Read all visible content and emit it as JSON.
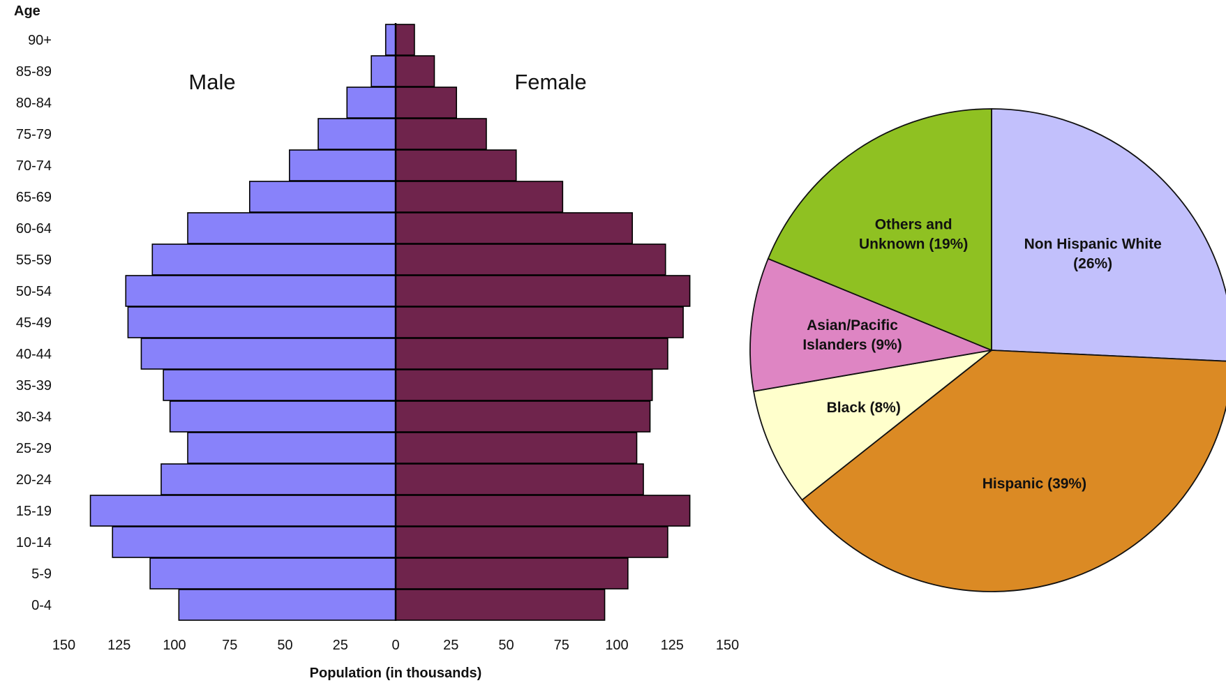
{
  "chart_data": [
    {
      "type": "bar",
      "orientation": "horizontal",
      "subtype": "population-pyramid",
      "title": "",
      "age_axis_label": "Age",
      "xlabel": "Population (in thousands)",
      "side_labels": {
        "left": "Male",
        "right": "Female"
      },
      "categories": [
        "90+",
        "85-89",
        "80-84",
        "75-79",
        "70-74",
        "65-69",
        "60-64",
        "55-59",
        "50-54",
        "45-49",
        "40-44",
        "35-39",
        "30-34",
        "25-29",
        "20-24",
        "15-19",
        "10-14",
        "5-9",
        "0-4"
      ],
      "series": [
        {
          "name": "Male",
          "color": "#8882FA",
          "values": [
            4.5,
            11,
            22,
            35,
            48,
            66,
            94,
            110,
            122,
            121,
            115,
            105,
            102,
            94,
            106,
            138,
            128,
            111,
            98
          ]
        },
        {
          "name": "Female",
          "color": "#6F244C",
          "values": [
            8.5,
            17.5,
            27.5,
            41,
            54.5,
            75.5,
            107,
            122,
            133,
            130,
            123,
            116,
            115,
            109,
            112,
            133,
            123,
            105,
            94.5
          ]
        }
      ],
      "x_ticks": [
        "150",
        "125",
        "100",
        "75",
        "50",
        "25",
        "0",
        "25",
        "50",
        "75",
        "100",
        "125",
        "150"
      ],
      "xlim": [
        -150,
        150
      ],
      "grid": false,
      "legend": "none"
    },
    {
      "type": "pie",
      "start_angle_deg": 0,
      "direction": "clockwise",
      "slices": [
        {
          "label_lines": [
            "Non Hispanic White",
            "(26%)"
          ],
          "value": 26,
          "color": "#C2C0FC"
        },
        {
          "label_lines": [
            "Hispanic (39%)"
          ],
          "value": 39,
          "color": "#DB8A24"
        },
        {
          "label_lines": [
            "Black (8%)"
          ],
          "value": 8,
          "color": "#FFFFCC"
        },
        {
          "label_lines": [
            "Asian/Pacific",
            "Islanders (9%)"
          ],
          "value": 9,
          "color": "#DE85C3"
        },
        {
          "label_lines": [
            "Others and",
            "Unknown (19%)"
          ],
          "value": 19,
          "color": "#8FC122"
        }
      ],
      "legend": "none"
    }
  ]
}
